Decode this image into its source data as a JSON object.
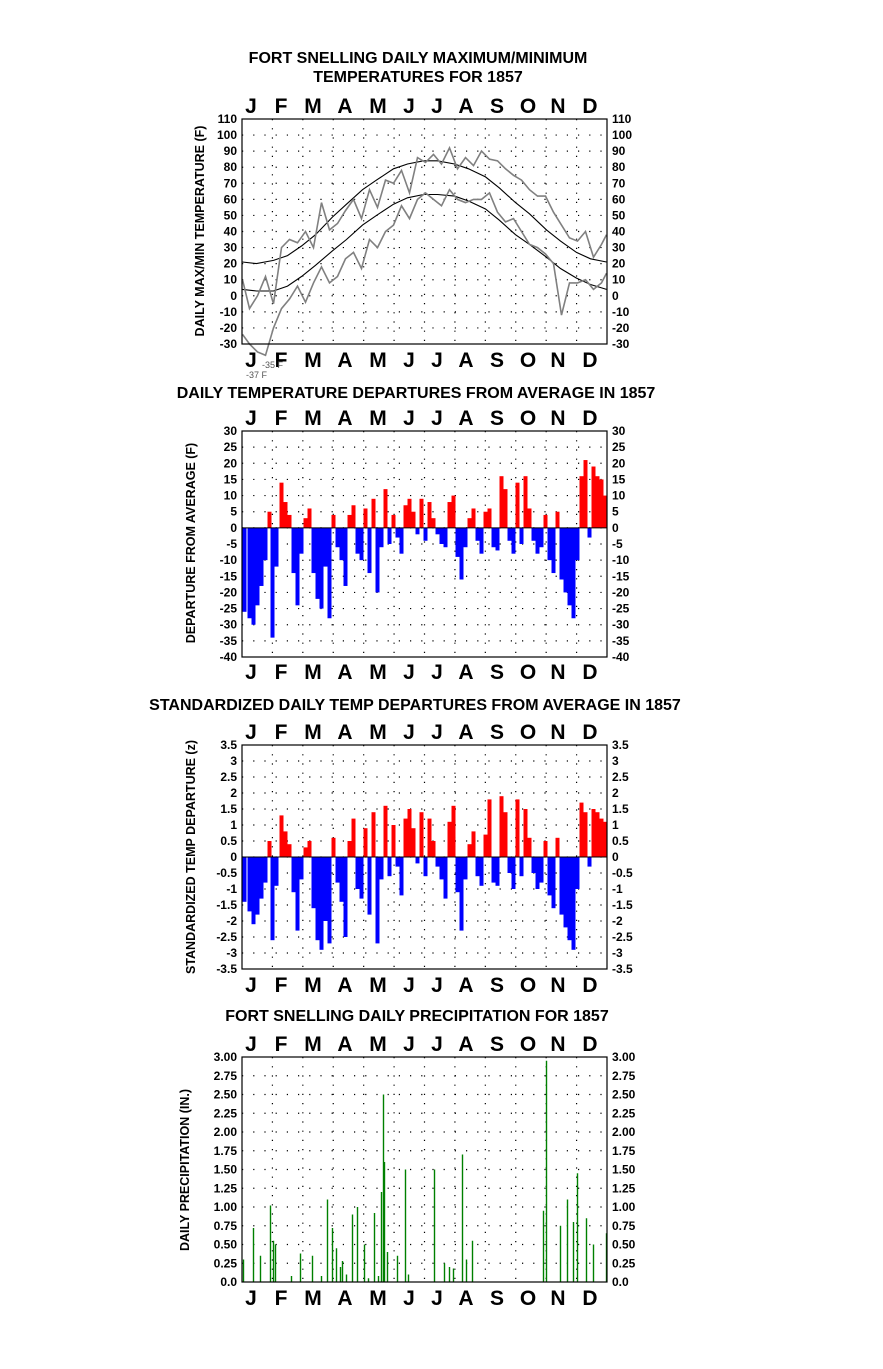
{
  "months": [
    "J",
    "F",
    "M",
    "A",
    "M",
    "J",
    "J",
    "A",
    "S",
    "O",
    "N",
    "D"
  ],
  "chart_data": [
    {
      "type": "line",
      "title": [
        "FORT SNELLING DAILY MAXIMUM/MINIMUM",
        "TEMPERATURES FOR 1857"
      ],
      "xlabel": "",
      "ylabel": "DAILY MAX/MIN TEMPERATURE (F)",
      "ylim": [
        -30,
        110
      ],
      "yticks": [
        110,
        100,
        90,
        80,
        70,
        60,
        50,
        40,
        30,
        20,
        10,
        0,
        -10,
        -20,
        -30
      ],
      "grid": true,
      "annotations": [
        "-35 F",
        "-37 F"
      ],
      "series": [
        {
          "role": "average-max",
          "color": "#000000",
          "x": [
            1,
            15,
            32,
            46,
            60,
            74,
            91,
            105,
            121,
            135,
            152,
            166,
            182,
            196,
            213,
            227,
            244,
            258,
            274,
            288,
            305,
            319,
            335,
            349,
            365
          ],
          "values": [
            21,
            20,
            22,
            25,
            31,
            38,
            49,
            57,
            66,
            72,
            79,
            82,
            84,
            84,
            82,
            79,
            74,
            67,
            58,
            51,
            41,
            34,
            27,
            23,
            21
          ]
        },
        {
          "role": "average-min",
          "color": "#000000",
          "x": [
            1,
            15,
            32,
            46,
            60,
            74,
            91,
            105,
            121,
            135,
            152,
            166,
            182,
            196,
            213,
            227,
            244,
            258,
            274,
            288,
            305,
            319,
            335,
            349,
            365
          ],
          "values": [
            4,
            3,
            3,
            6,
            12,
            19,
            28,
            35,
            44,
            50,
            57,
            61,
            63,
            63,
            62,
            59,
            54,
            47,
            38,
            32,
            24,
            17,
            11,
            7,
            4
          ]
        },
        {
          "role": "daily-max",
          "color": "#808080",
          "x": [
            1,
            8,
            16,
            24,
            32,
            40,
            48,
            56,
            64,
            72,
            80,
            88,
            96,
            104,
            112,
            120,
            128,
            136,
            144,
            152,
            160,
            168,
            176,
            184,
            192,
            200,
            208,
            216,
            224,
            232,
            240,
            248,
            256,
            264,
            272,
            280,
            288,
            296,
            304,
            312,
            320,
            328,
            336,
            344,
            352,
            360,
            365
          ],
          "values": [
            10,
            -8,
            0,
            12,
            -5,
            30,
            35,
            33,
            40,
            30,
            58,
            41,
            45,
            53,
            60,
            48,
            66,
            55,
            72,
            70,
            78,
            64,
            86,
            83,
            88,
            82,
            92,
            79,
            86,
            81,
            90,
            85,
            84,
            79,
            75,
            72,
            66,
            62,
            62,
            52,
            44,
            36,
            34,
            40,
            24,
            32,
            38
          ]
        },
        {
          "role": "daily-min",
          "color": "#808080",
          "x": [
            1,
            8,
            16,
            24,
            32,
            40,
            48,
            56,
            64,
            72,
            80,
            88,
            96,
            104,
            112,
            120,
            128,
            136,
            144,
            152,
            160,
            168,
            176,
            184,
            192,
            200,
            208,
            216,
            224,
            232,
            240,
            248,
            256,
            264,
            272,
            280,
            288,
            296,
            304,
            312,
            320,
            328,
            336,
            344,
            352,
            360,
            365
          ],
          "values": [
            -24,
            -30,
            -35,
            -37,
            -20,
            -8,
            -2,
            6,
            -4,
            8,
            18,
            8,
            12,
            23,
            27,
            17,
            35,
            30,
            40,
            44,
            56,
            48,
            60,
            64,
            60,
            56,
            66,
            60,
            58,
            60,
            60,
            64,
            52,
            46,
            48,
            40,
            32,
            30,
            26,
            20,
            -12,
            8,
            8,
            10,
            4,
            8,
            14
          ]
        }
      ]
    },
    {
      "type": "bar",
      "title": [
        "DAILY TEMPERATURE DEPARTURES FROM AVERAGE IN 1857"
      ],
      "xlabel": "",
      "ylabel": "DEPARTURE FROM AVERAGE (F)",
      "ylim": [
        -40,
        30
      ],
      "yticks": [
        30,
        25,
        20,
        15,
        10,
        5,
        0,
        -5,
        -10,
        -15,
        -20,
        -25,
        -30,
        -35,
        -40
      ],
      "grid": true,
      "colors": {
        "positive": "#ff0000",
        "negative": "#0000ff"
      },
      "x": [
        3,
        8,
        12,
        16,
        20,
        24,
        28,
        31,
        35,
        40,
        44,
        48,
        52,
        56,
        60,
        64,
        68,
        72,
        76,
        80,
        84,
        88,
        92,
        96,
        100,
        104,
        108,
        112,
        116,
        120,
        124,
        128,
        132,
        136,
        140,
        144,
        148,
        152,
        156,
        160,
        164,
        168,
        172,
        176,
        180,
        184,
        188,
        192,
        196,
        200,
        204,
        208,
        212,
        216,
        220,
        224,
        228,
        232,
        236,
        240,
        244,
        248,
        252,
        256,
        260,
        264,
        268,
        272,
        276,
        280,
        284,
        288,
        292,
        296,
        300,
        304,
        308,
        312,
        316,
        320,
        324,
        328,
        332,
        336,
        340,
        344,
        348,
        352,
        356,
        360,
        364
      ],
      "values": [
        -26,
        -28,
        -30,
        -24,
        -18,
        -10,
        5,
        -34,
        -12,
        14,
        8,
        4,
        -14,
        -24,
        -8,
        3,
        6,
        -14,
        -22,
        -25,
        -12,
        -28,
        4,
        -6,
        -10,
        -18,
        4,
        7,
        -8,
        -10,
        6,
        -14,
        9,
        -20,
        -6,
        12,
        -5,
        4,
        -3,
        -8,
        7,
        9,
        5,
        -2,
        9,
        -4,
        8,
        3,
        -2,
        -5,
        -6,
        8,
        10,
        -9,
        -16,
        -6,
        3,
        6,
        -4,
        -8,
        5,
        6,
        -6,
        -7,
        16,
        12,
        -4,
        -8,
        14,
        -5,
        16,
        6,
        -4,
        -8,
        -6,
        4,
        -10,
        -14,
        5,
        -16,
        -20,
        -24,
        -28,
        -10,
        16,
        21,
        -3,
        19,
        16,
        15,
        10
      ]
    },
    {
      "type": "bar",
      "title": [
        "STANDARDIZED DAILY TEMP DEPARTURES FROM AVERAGE IN 1857"
      ],
      "xlabel": "",
      "ylabel": "STANDARDIZED TEMP DEPARTURE (z)",
      "ylim": [
        -3.5,
        3.5
      ],
      "yticks": [
        3.5,
        3.0,
        2.5,
        2.0,
        1.5,
        1.0,
        0.5,
        0.0,
        -0.5,
        -1.0,
        -1.5,
        -2.0,
        -2.5,
        -3.0,
        -3.5
      ],
      "grid": true,
      "colors": {
        "positive": "#ff0000",
        "negative": "#0000ff"
      },
      "x": [
        3,
        8,
        12,
        16,
        20,
        24,
        28,
        31,
        35,
        40,
        44,
        48,
        52,
        56,
        60,
        64,
        68,
        72,
        76,
        80,
        84,
        88,
        92,
        96,
        100,
        104,
        108,
        112,
        116,
        120,
        124,
        128,
        132,
        136,
        140,
        144,
        148,
        152,
        156,
        160,
        164,
        168,
        172,
        176,
        180,
        184,
        188,
        192,
        196,
        200,
        204,
        208,
        212,
        216,
        220,
        224,
        228,
        232,
        236,
        240,
        244,
        248,
        252,
        256,
        260,
        264,
        268,
        272,
        276,
        280,
        284,
        288,
        292,
        296,
        300,
        304,
        308,
        312,
        316,
        320,
        324,
        328,
        332,
        336,
        340,
        344,
        348,
        352,
        356,
        360,
        364
      ],
      "values": [
        -1.4,
        -1.7,
        -2.1,
        -1.8,
        -1.3,
        -0.8,
        0.5,
        -2.6,
        -0.9,
        1.3,
        0.8,
        0.4,
        -1.1,
        -2.3,
        -0.7,
        0.3,
        0.5,
        -1.6,
        -2.6,
        -2.9,
        -2.0,
        -2.7,
        0.6,
        -0.8,
        -1.4,
        -2.5,
        0.5,
        1.2,
        -1.0,
        -1.3,
        0.9,
        -1.8,
        1.4,
        -2.7,
        -0.7,
        1.6,
        -0.6,
        1.0,
        -0.3,
        -1.2,
        1.2,
        1.5,
        0.9,
        -0.2,
        1.4,
        -0.6,
        1.2,
        0.5,
        -0.3,
        -0.7,
        -1.3,
        1.1,
        1.6,
        -1.1,
        -2.3,
        -0.7,
        0.4,
        0.8,
        -0.6,
        -0.9,
        0.7,
        1.8,
        -0.8,
        -0.9,
        1.9,
        1.4,
        -0.5,
        -1.0,
        1.8,
        -0.6,
        1.5,
        0.6,
        -0.5,
        -1.0,
        -0.8,
        0.5,
        -1.2,
        -1.6,
        0.6,
        -1.8,
        -2.2,
        -2.6,
        -2.9,
        -1.0,
        1.7,
        1.4,
        -0.3,
        1.5,
        1.4,
        1.2,
        1.1
      ]
    },
    {
      "type": "bar",
      "title": [
        "FORT SNELLING DAILY PRECIPITATION FOR 1857"
      ],
      "xlabel": "",
      "ylabel": "DAILY PRECIPITATION (IN.)",
      "ylim": [
        0,
        3.0
      ],
      "yticks": [
        "3.00",
        "2.75",
        "2.50",
        "2.25",
        "2.00",
        "1.75",
        "1.50",
        "1.25",
        "1.00",
        "0.75",
        "0.50",
        "0.25",
        "0.0"
      ],
      "grid": true,
      "colors": {
        "bar": "#008000"
      },
      "x": [
        2,
        12,
        19,
        29,
        32,
        34,
        50,
        59,
        71,
        80,
        86,
        91,
        95,
        99,
        101,
        105,
        111,
        116,
        123,
        127,
        133,
        137,
        140,
        142,
        143,
        146,
        156,
        164,
        167,
        193,
        203,
        208,
        212,
        221,
        225,
        231,
        302,
        305,
        319,
        326,
        332,
        336,
        345,
        352,
        365
      ],
      "values": [
        0.3,
        0.72,
        0.35,
        1.02,
        0.55,
        0.5,
        0.08,
        0.38,
        0.35,
        0.08,
        1.1,
        0.72,
        0.45,
        0.2,
        0.28,
        0.1,
        0.9,
        1.0,
        0.5,
        0.05,
        0.92,
        0.08,
        1.2,
        2.5,
        1.6,
        0.4,
        0.35,
        1.5,
        0.1,
        1.5,
        0.25,
        0.2,
        0.18,
        1.7,
        0.3,
        0.55,
        0.95,
        2.95,
        0.75,
        1.1,
        0.8,
        1.45,
        0.85,
        0.5,
        0.65
      ]
    }
  ]
}
